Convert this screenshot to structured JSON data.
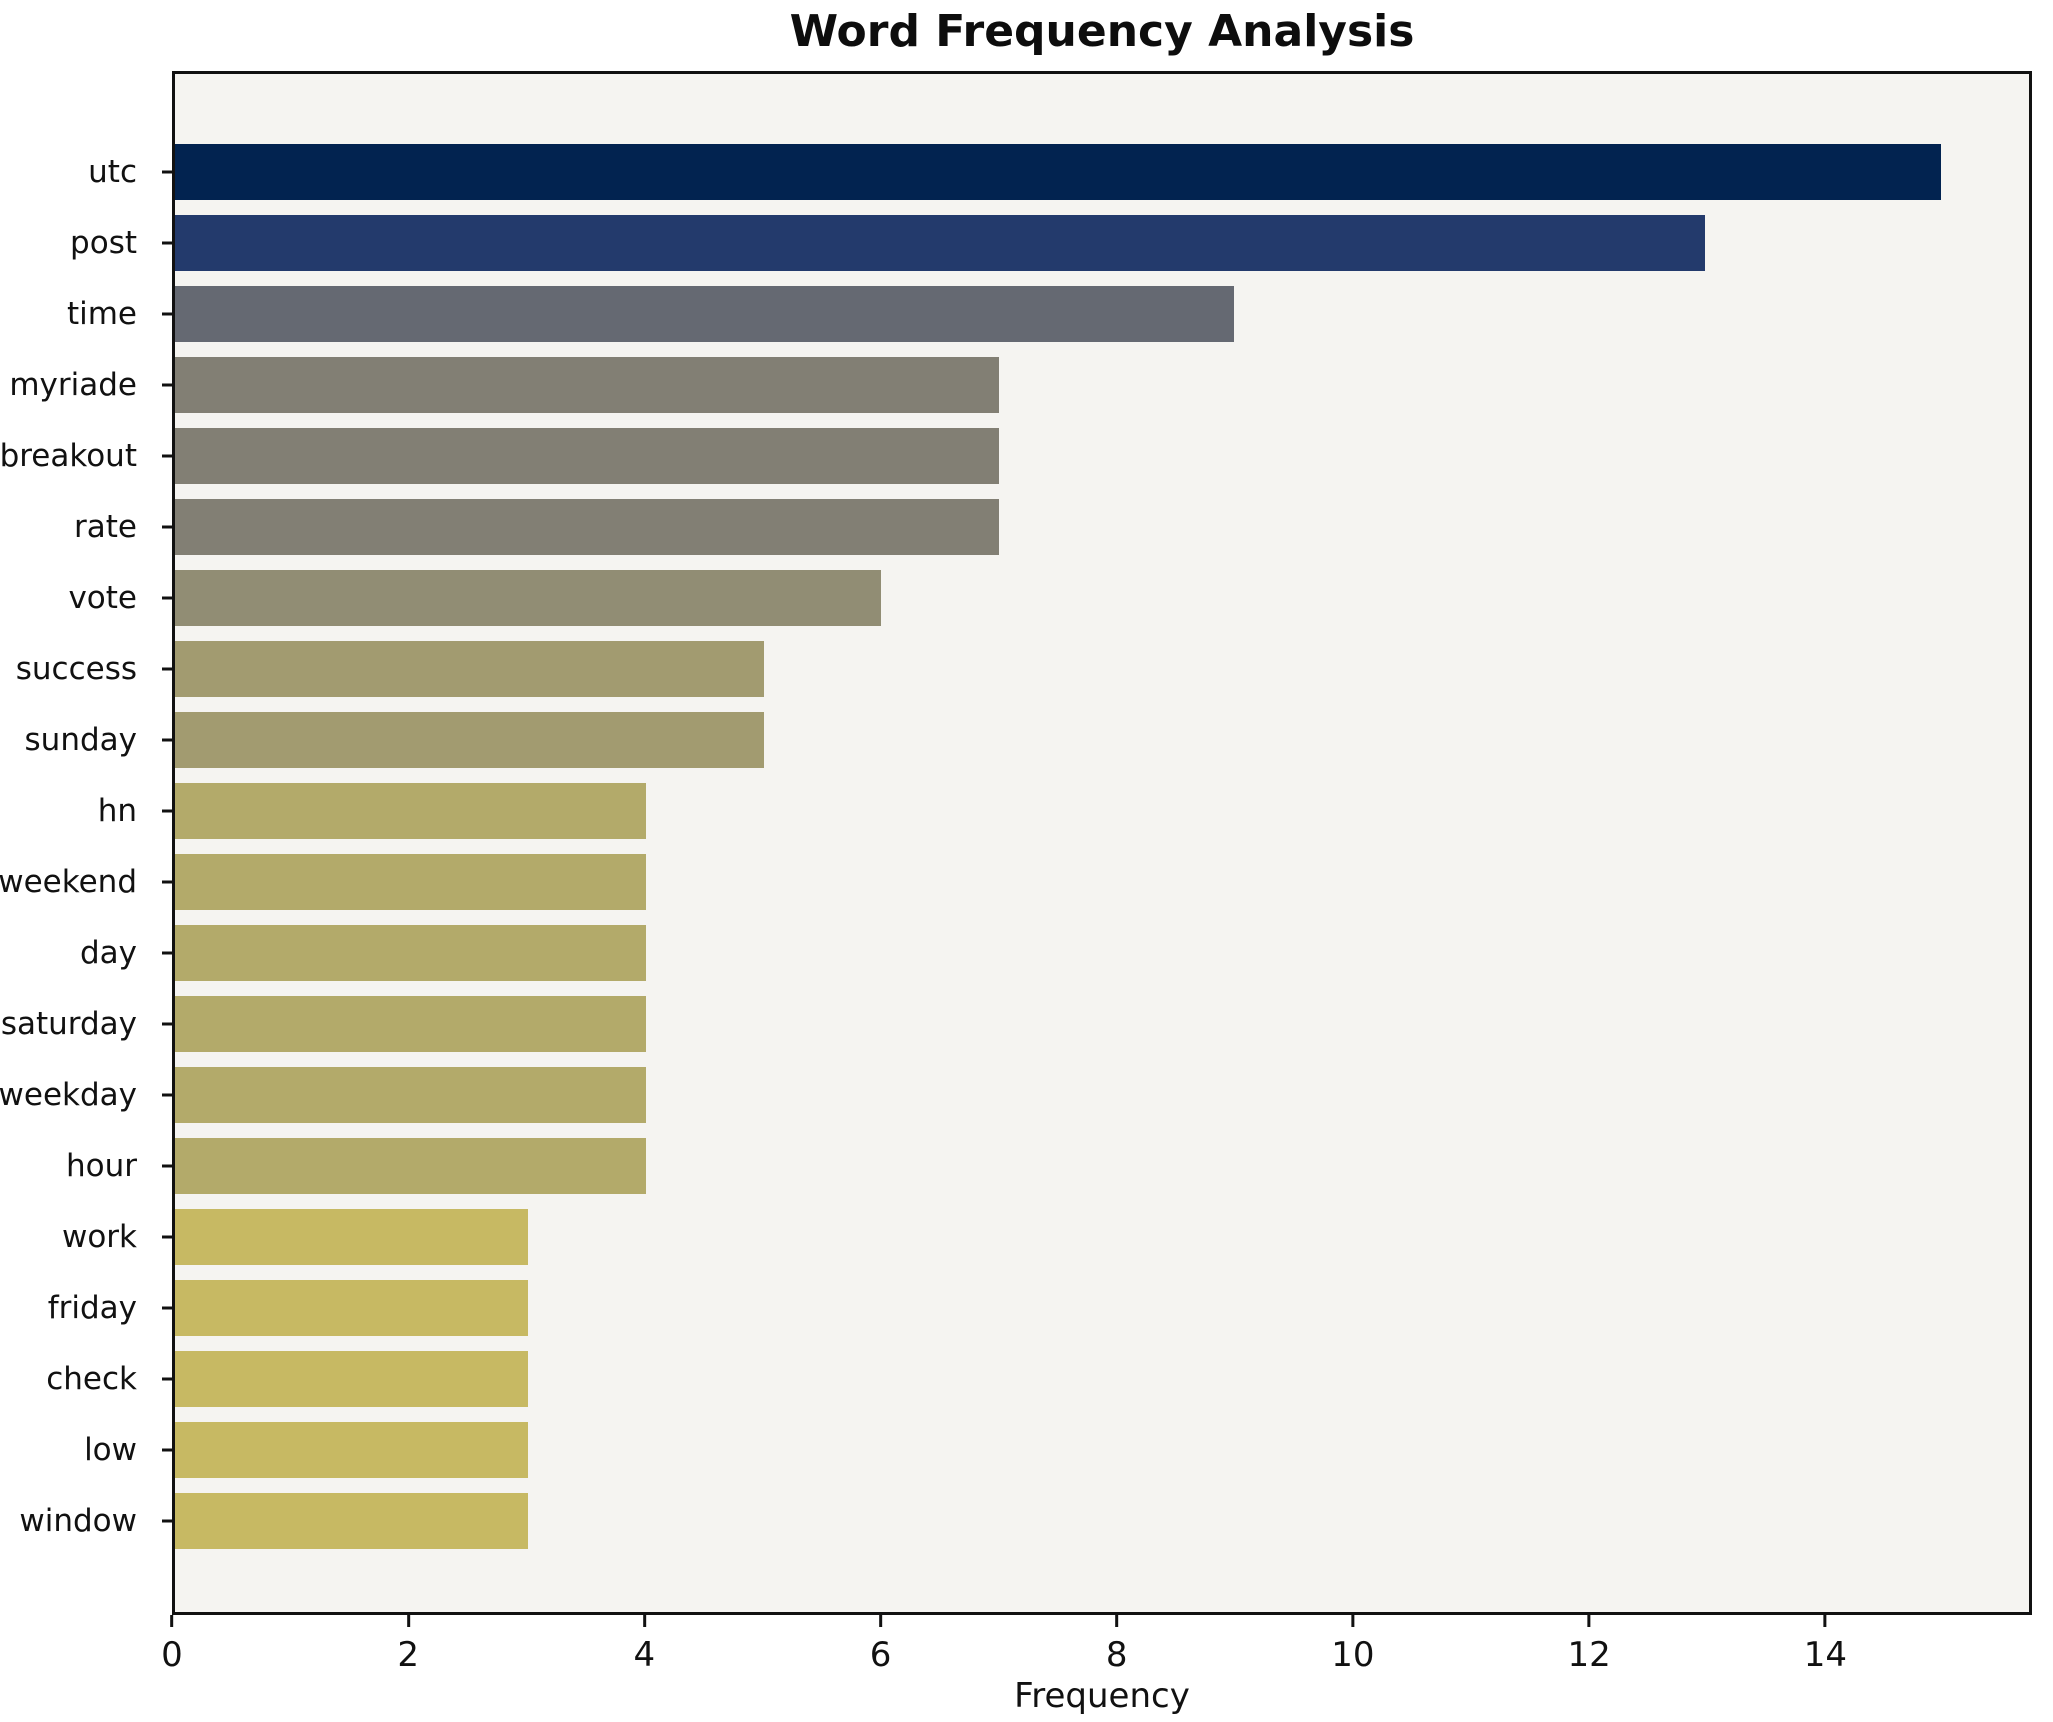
{
  "chart_data": {
    "type": "bar",
    "orientation": "horizontal",
    "title": "Word Frequency Analysis",
    "xlabel": "Frequency",
    "ylabel": "",
    "categories": [
      "utc",
      "post",
      "time",
      "myriade",
      "breakout",
      "rate",
      "vote",
      "success",
      "sunday",
      "hn",
      "weekend",
      "day",
      "saturday",
      "weekday",
      "hour",
      "work",
      "friday",
      "check",
      "low",
      "window"
    ],
    "values": [
      15,
      13,
      9,
      7,
      7,
      7,
      6,
      5,
      5,
      4,
      4,
      4,
      4,
      4,
      4,
      3,
      3,
      3,
      3,
      3
    ],
    "bar_colors": [
      "#022350",
      "#233a6c",
      "#656972",
      "#827f74",
      "#827f74",
      "#827f74",
      "#918d74",
      "#a29b70",
      "#a29b70",
      "#b3aa6a",
      "#b3aa6a",
      "#b3aa6a",
      "#b3aa6a",
      "#b3aa6a",
      "#b3aa6a",
      "#c7b963",
      "#c7b963",
      "#c7b963",
      "#c7b963",
      "#c7b963"
    ],
    "xlim": [
      0,
      15.75
    ],
    "xticks": [
      0,
      2,
      4,
      6,
      8,
      10,
      12,
      14
    ],
    "grid": false,
    "legend": null,
    "plot_background": "#f5f4f1",
    "figure_background": "#ffffff",
    "spine_color": "#111111"
  }
}
